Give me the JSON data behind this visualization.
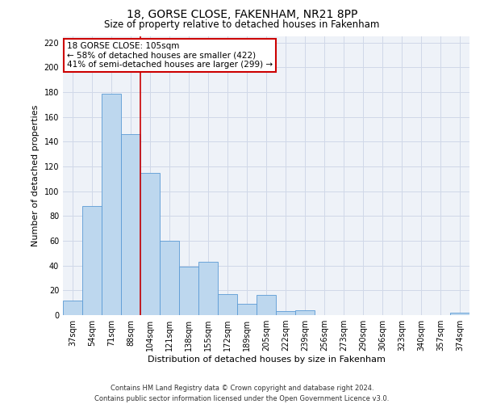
{
  "title": "18, GORSE CLOSE, FAKENHAM, NR21 8PP",
  "subtitle": "Size of property relative to detached houses in Fakenham",
  "xlabel": "Distribution of detached houses by size in Fakenham",
  "ylabel": "Number of detached properties",
  "bin_labels": [
    "37sqm",
    "54sqm",
    "71sqm",
    "88sqm",
    "104sqm",
    "121sqm",
    "138sqm",
    "155sqm",
    "172sqm",
    "189sqm",
    "205sqm",
    "222sqm",
    "239sqm",
    "256sqm",
    "273sqm",
    "290sqm",
    "306sqm",
    "323sqm",
    "340sqm",
    "357sqm",
    "374sqm"
  ],
  "bar_values": [
    12,
    88,
    179,
    146,
    115,
    60,
    39,
    43,
    17,
    9,
    16,
    3,
    4,
    0,
    0,
    0,
    0,
    0,
    0,
    0,
    2
  ],
  "bar_color": "#bdd7ee",
  "bar_edge_color": "#5b9bd5",
  "ylim": [
    0,
    225
  ],
  "yticks": [
    0,
    20,
    40,
    60,
    80,
    100,
    120,
    140,
    160,
    180,
    200,
    220
  ],
  "vline_x_index": 3.5,
  "annotation_title": "18 GORSE CLOSE: 105sqm",
  "annotation_line1": "← 58% of detached houses are smaller (422)",
  "annotation_line2": "41% of semi-detached houses are larger (299) →",
  "annotation_box_color": "#ffffff",
  "annotation_box_edgecolor": "#cc0000",
  "vline_color": "#cc0000",
  "grid_color": "#d0d8e8",
  "bg_color": "#eef2f8",
  "footnote1": "Contains HM Land Registry data © Crown copyright and database right 2024.",
  "footnote2": "Contains public sector information licensed under the Open Government Licence v3.0.",
  "title_fontsize": 10,
  "subtitle_fontsize": 8.5,
  "axis_label_fontsize": 8,
  "tick_fontsize": 7,
  "annotation_fontsize": 7.5,
  "footnote_fontsize": 6
}
